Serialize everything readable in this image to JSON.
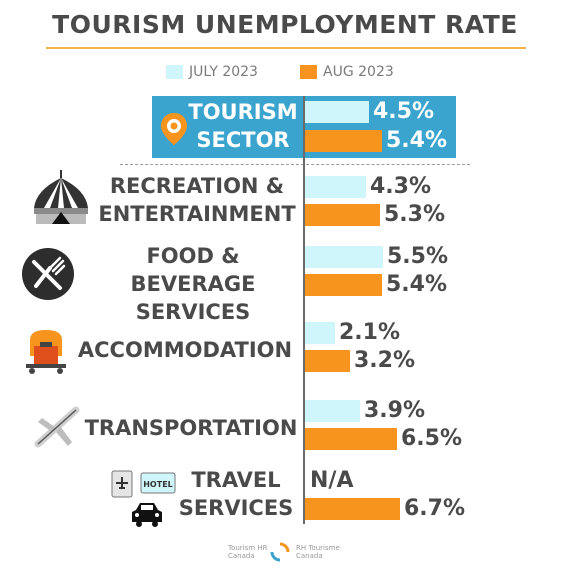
{
  "title": "TOURISM UNEMPLOYMENT RATE",
  "legend": [
    {
      "label": "JULY 2023",
      "color": "#cff6fb"
    },
    {
      "label": "AUG 2023",
      "color": "#f7941d"
    }
  ],
  "footer": {
    "logo_left_line1": "Tourism HR",
    "logo_left_line2": "Canada",
    "logo_right_line1": "RH Tourisme",
    "logo_right_line2": "Canada"
  },
  "chart_data": {
    "type": "bar",
    "orientation": "horizontal",
    "title": "TOURISM UNEMPLOYMENT RATE",
    "unit": "%",
    "categories": [
      "TOURISM SECTOR",
      "RECREATION & ENTERTAINMENT",
      "FOOD & BEVERAGE SERVICES",
      "ACCOMMODATION",
      "TRANSPORTATION",
      "TRAVEL SERVICES"
    ],
    "series": [
      {
        "name": "JULY 2023",
        "color": "#cff6fb",
        "values": [
          4.5,
          4.3,
          5.5,
          2.1,
          3.9,
          null
        ],
        "labels": [
          "4.5%",
          "4.3%",
          "5.5%",
          "2.1%",
          "3.9%",
          "N/A"
        ]
      },
      {
        "name": "AUG 2023",
        "color": "#f7941d",
        "values": [
          5.4,
          5.3,
          5.4,
          3.2,
          6.5,
          6.7
        ],
        "labels": [
          "5.4%",
          "5.3%",
          "5.4%",
          "3.2%",
          "6.5%",
          "6.7%"
        ]
      }
    ],
    "highlight_category": "TOURISM SECTOR",
    "highlight_color": "#3aa4cf",
    "legend_position": "top",
    "grid": false
  }
}
